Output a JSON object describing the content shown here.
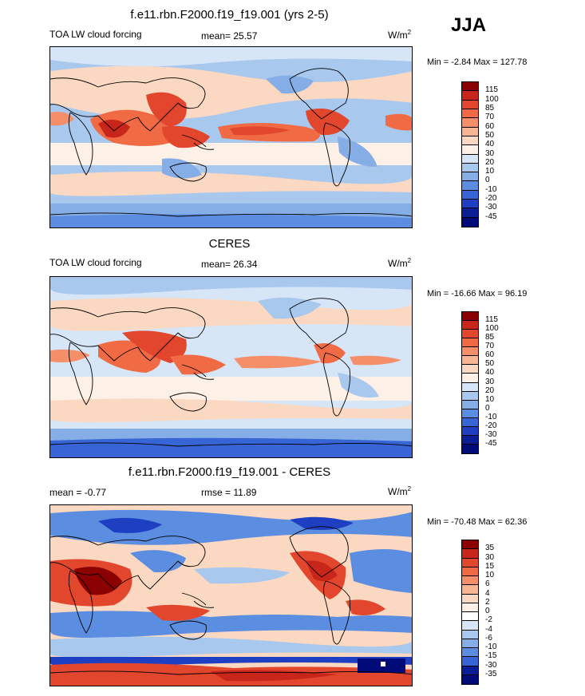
{
  "season": "JJA",
  "panels": [
    {
      "title": "f.e11.rbn.F2000.f19_f19.001 (yrs 2-5)",
      "left_label": "TOA LW cloud forcing",
      "mean": "mean=  25.57",
      "units_base": "W/m",
      "units_exp": "2",
      "minmax": "Min =  -2.84 Max = 127.78",
      "colorbar": {
        "labels": [
          "115",
          "100",
          "85",
          "70",
          "60",
          "50",
          "40",
          "30",
          "20",
          "10",
          "0",
          "-10",
          "-20",
          "-30",
          "-45"
        ],
        "colors": [
          "#8b0000",
          "#c8261a",
          "#e2462c",
          "#f06a44",
          "#f58f6a",
          "#f8b493",
          "#fad8c2",
          "#fdf0e6",
          "#d6e6f7",
          "#a9c8ee",
          "#86aee6",
          "#5b8de0",
          "#3765d6",
          "#1f3fc2",
          "#0c1e96",
          "#000a78"
        ]
      }
    },
    {
      "title": "CERES",
      "left_label": "TOA LW cloud forcing",
      "mean": "mean=  26.34",
      "units_base": "W/m",
      "units_exp": "2",
      "minmax": "Min = -16.66 Max =  96.19",
      "colorbar": {
        "labels": [
          "115",
          "100",
          "85",
          "70",
          "60",
          "50",
          "40",
          "30",
          "20",
          "10",
          "0",
          "-10",
          "-20",
          "-30",
          "-45"
        ],
        "colors": [
          "#8b0000",
          "#c8261a",
          "#e2462c",
          "#f06a44",
          "#f58f6a",
          "#f8b493",
          "#fad8c2",
          "#fdf0e6",
          "#d6e6f7",
          "#a9c8ee",
          "#86aee6",
          "#5b8de0",
          "#3765d6",
          "#1f3fc2",
          "#0c1e96",
          "#000a78"
        ]
      }
    },
    {
      "title": "f.e11.rbn.F2000.f19_f19.001 - CERES",
      "left_label": "mean =  -0.77",
      "mean": "rmse =  11.89",
      "units_base": "W/m",
      "units_exp": "2",
      "minmax": "Min = -70.48 Max =  62.36",
      "colorbar": {
        "labels": [
          "35",
          "30",
          "15",
          "10",
          "6",
          "4",
          "2",
          "0",
          "-2",
          "-4",
          "-6",
          "-10",
          "-15",
          "-30",
          "-35"
        ],
        "colors": [
          "#8b0000",
          "#c8261a",
          "#e2462c",
          "#f06a44",
          "#f58f6a",
          "#f8b493",
          "#fad8c2",
          "#fdf0e6",
          "#ffffff",
          "#d6e6f7",
          "#a9c8ee",
          "#86aee6",
          "#5b8de0",
          "#3765d6",
          "#0c1e96",
          "#000a78"
        ]
      }
    }
  ],
  "palette": {
    "ocean_blue": "#a9c8ee",
    "pale": "#fad8c2",
    "red": "#e2462c",
    "dark_red": "#c8261a",
    "deep_blue": "#3765d6"
  }
}
